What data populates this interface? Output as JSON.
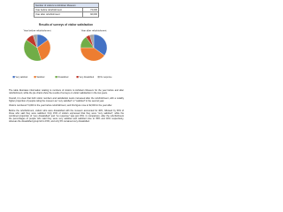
{
  "table": {
    "title": "Number of visitors to Ashdown Museum",
    "rows": [
      [
        "Year before refurbishment",
        "74,000"
      ],
      [
        "Year after refurbishment",
        "92,000"
      ]
    ]
  },
  "chart_data": {
    "type": "pie",
    "title": "Results of surveys of visitor satisfaction",
    "categories": [
      "Very satisfied",
      "Satisfied",
      "Dissatisfied",
      "Very dissatisfied",
      "No response"
    ],
    "colors": [
      "#4472c4",
      "#ed7d31",
      "#70ad47",
      "#c0392b",
      "#a5a5a5"
    ],
    "series": [
      {
        "name": "Year before refurbishment",
        "values": [
          15,
          30,
          40,
          10,
          5
        ]
      },
      {
        "name": "Year after refurbishment",
        "values": [
          35,
          40,
          15,
          5,
          5
        ]
      }
    ]
  },
  "paragraphs": [
    "The table illustrates information relating to numbers of visitors to Ashdown Museum for the year before and after refurbishment, while the pie charts show the results of surveys on visitor satisfaction in the two years.",
    "Overall, it is clear that both visitor numbers and satisfaction levels increased after the refurbishment, with a notably higher proportion of people rating the museum as \"very satisfied\" or \"satisfied\" in the second year.",
    "Visitors numbered 74,000 in the year before refurbishment, and this figure rose to 92,000 in the year after.",
    "Before the refurbishment, visitors who were dissatisfied with the museum accounted for 40%, followed by 30% of those who said they were satisfied. Only 15% of visitors expressed that they were \"very satisfied\", while the combined proportion of \"very dissatisfied\" and \"no response\" was just 15%. In comparison, after the refurbishment the percentages of people who said they were very satisfied and satisfied rose to 35% and 40% respectively, whereas the dissatisfied group fell to 15%, and only 5% remained very dissatisfied."
  ]
}
